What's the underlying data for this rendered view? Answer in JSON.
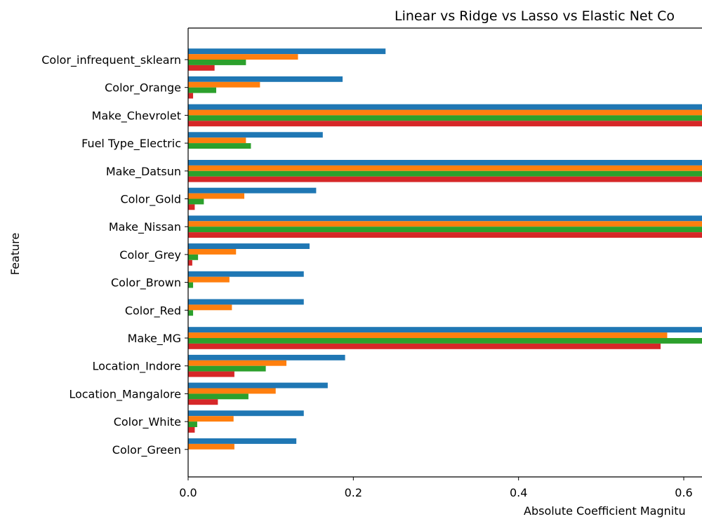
{
  "chart_data": {
    "type": "bar",
    "orientation": "horizontal",
    "title": "Linear vs Ridge vs Lasso vs Elastic Net Co",
    "xlabel": "Absolute Coefficient Magnitu",
    "ylabel": "Feature",
    "xlim": [
      0,
      0.63
    ],
    "x_ticks": [
      0.0,
      0.2,
      0.4,
      0.6
    ],
    "x_tick_labels": [
      "0.0",
      "0.2",
      "0.4",
      "0.6"
    ],
    "grid": false,
    "categories": [
      "Color_infrequent_sklearn",
      "Color_Orange",
      "Make_Chevrolet",
      "Fuel Type_Electric",
      "Make_Datsun",
      "Color_Gold",
      "Make_Nissan",
      "Color_Grey",
      "Color_Brown",
      "Color_Red",
      "Make_MG",
      "Location_Indore",
      "Location_Mangalore",
      "Color_White",
      "Color_Green"
    ],
    "series": [
      {
        "color": "#1f77b4",
        "values": [
          0.239,
          0.187,
          0.7,
          0.163,
          0.7,
          0.155,
          0.7,
          0.147,
          0.14,
          0.14,
          0.7,
          0.19,
          0.169,
          0.14,
          0.131
        ]
      },
      {
        "color": "#ff7f0e",
        "values": [
          0.133,
          0.087,
          0.7,
          0.07,
          0.7,
          0.068,
          0.7,
          0.058,
          0.05,
          0.053,
          0.58,
          0.119,
          0.106,
          0.055,
          0.056
        ]
      },
      {
        "color": "#2ca02c",
        "values": [
          0.07,
          0.034,
          0.7,
          0.076,
          0.7,
          0.019,
          0.7,
          0.012,
          0.006,
          0.006,
          0.7,
          0.094,
          0.073,
          0.011,
          0.0
        ]
      },
      {
        "color": "#d62728",
        "values": [
          0.032,
          0.006,
          0.7,
          0.0,
          0.7,
          0.008,
          0.7,
          0.005,
          0.0,
          0.0,
          0.572,
          0.056,
          0.036,
          0.008,
          0.0
        ]
      }
    ]
  }
}
